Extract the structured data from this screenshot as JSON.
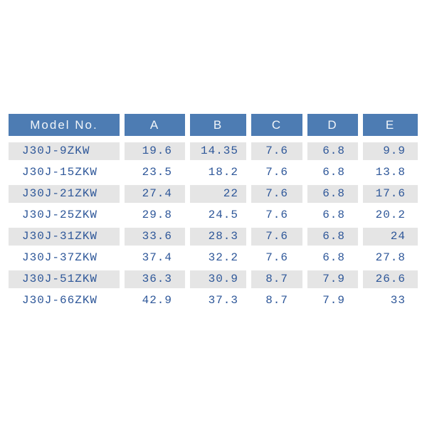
{
  "table": {
    "columns": [
      "Model No.",
      "A",
      "B",
      "C",
      "D",
      "E"
    ],
    "rows": [
      {
        "model": "J30J-9ZKW",
        "values": [
          "19.6",
          "14.35",
          "7.6",
          "6.8",
          "9.9"
        ]
      },
      {
        "model": "J30J-15ZKW",
        "values": [
          "23.5",
          "18.2",
          "7.6",
          "6.8",
          "13.8"
        ]
      },
      {
        "model": "J30J-21ZKW",
        "values": [
          "27.4",
          "22",
          "7.6",
          "6.8",
          "17.6"
        ]
      },
      {
        "model": "J30J-25ZKW",
        "values": [
          "29.8",
          "24.5",
          "7.6",
          "6.8",
          "20.2"
        ]
      },
      {
        "model": "J30J-31ZKW",
        "values": [
          "33.6",
          "28.3",
          "7.6",
          "6.8",
          "24"
        ]
      },
      {
        "model": "J30J-37ZKW",
        "values": [
          "37.4",
          "32.2",
          "7.6",
          "6.8",
          "27.8"
        ]
      },
      {
        "model": "J30J-51ZKW",
        "values": [
          "36.3",
          "30.9",
          "8.7",
          "7.9",
          "26.6"
        ]
      },
      {
        "model": "J30J-66ZKW",
        "values": [
          "42.9",
          "37.3",
          "8.7",
          "7.9",
          "33"
        ]
      }
    ]
  },
  "colors": {
    "header_bg": "#4d7cb3",
    "header_text": "#f1f5f9",
    "row_shade": "#e5e5e5",
    "data_text": "#2e5799",
    "background": "#ffffff"
  }
}
